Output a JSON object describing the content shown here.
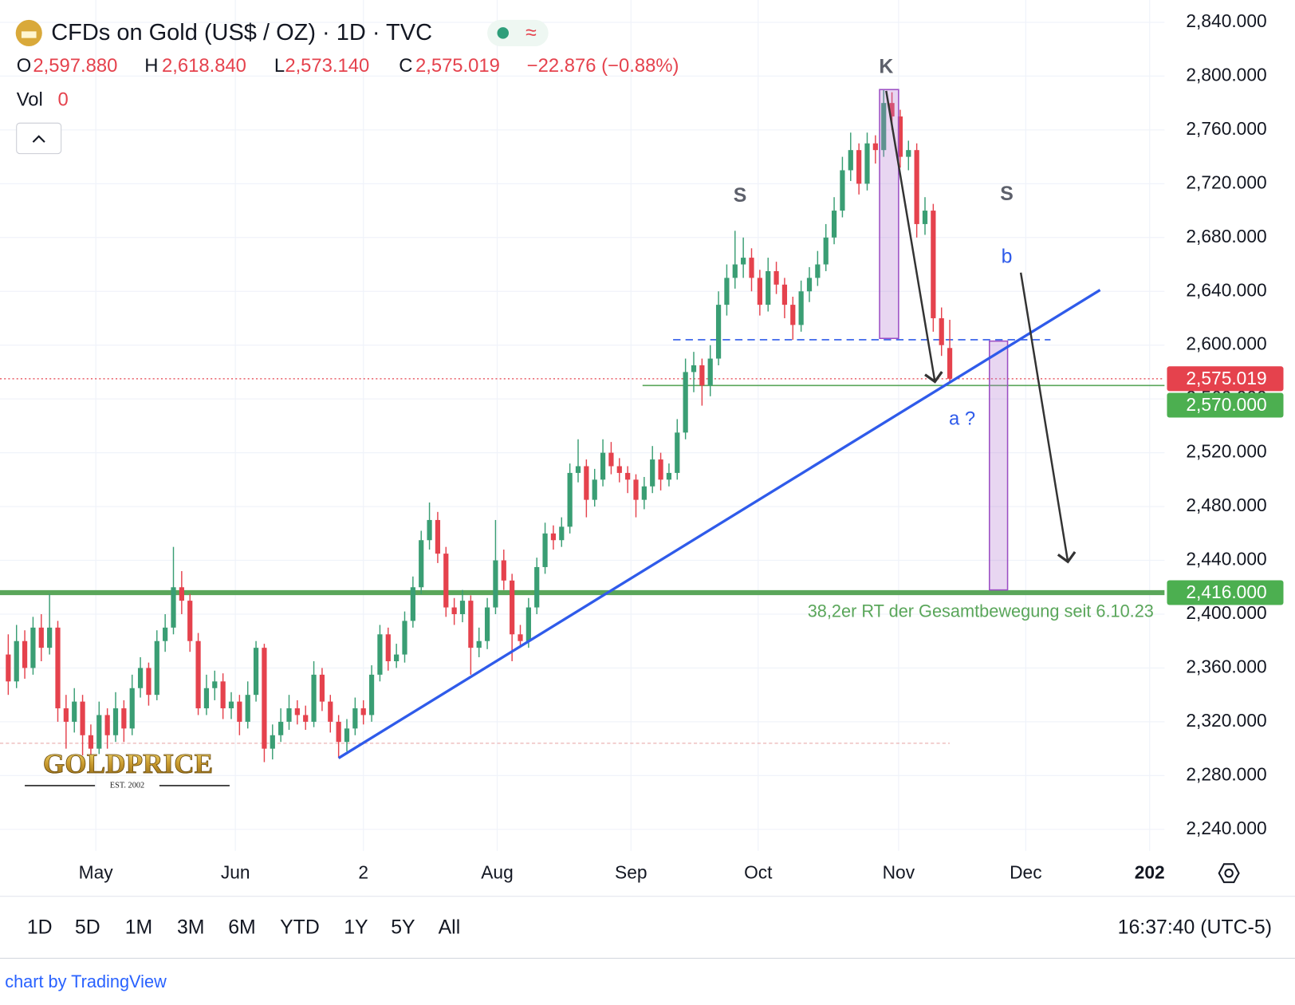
{
  "header": {
    "title": "CFDs on Gold (US$ / OZ) · 1D · TVC",
    "ohlc": [
      {
        "key": "O",
        "value": "2,597.880"
      },
      {
        "key": "H",
        "value": "2,618.840"
      },
      {
        "key": "L",
        "value": "2,573.140"
      },
      {
        "key": "C",
        "value": "2,575.019"
      }
    ],
    "change": "−22.876 (−0.88%)",
    "vol_label": "Vol",
    "vol_value": "0"
  },
  "chart_data": {
    "type": "candlestick",
    "up_color": "#3a9e74",
    "down_color": "#e5424d",
    "ylim": [
      2240,
      2840
    ],
    "yticks": [
      {
        "value": 2240,
        "label": "2,240.000"
      },
      {
        "value": 2280,
        "label": "2,280.000"
      },
      {
        "value": 2320,
        "label": "2,320.000"
      },
      {
        "value": 2360,
        "label": "2,360.000"
      },
      {
        "value": 2400,
        "label": "2,400.000"
      },
      {
        "value": 2440,
        "label": "2,440.000"
      },
      {
        "value": 2480,
        "label": "2,480.000"
      },
      {
        "value": 2520,
        "label": "2,520.000"
      },
      {
        "value": 2560,
        "label": "2,560.000"
      },
      {
        "value": 2600,
        "label": "2,600.000"
      },
      {
        "value": 2640,
        "label": "2,640.000"
      },
      {
        "value": 2680,
        "label": "2,680.000"
      },
      {
        "value": 2720,
        "label": "2,720.000"
      },
      {
        "value": 2760,
        "label": "2,760.000"
      },
      {
        "value": 2800,
        "label": "2,800.000"
      },
      {
        "value": 2840,
        "label": "2,840.000"
      }
    ],
    "xlim": [
      -1,
      140
    ],
    "xticks": [
      {
        "value": 10.6,
        "label": "May"
      },
      {
        "value": 27.5,
        "label": "Jun"
      },
      {
        "value": 43,
        "label": "2"
      },
      {
        "value": 59.2,
        "label": "Aug"
      },
      {
        "value": 75.4,
        "label": "Sep"
      },
      {
        "value": 90.8,
        "label": "Oct"
      },
      {
        "value": 107.8,
        "label": "Nov"
      },
      {
        "value": 123.2,
        "label": "Dec"
      },
      {
        "value": 138.2,
        "label": "202"
      }
    ],
    "grid": true,
    "candles": [
      [
        2370,
        2385,
        2340,
        2350
      ],
      [
        2350,
        2392,
        2345,
        2380
      ],
      [
        2380,
        2388,
        2352,
        2360
      ],
      [
        2360,
        2398,
        2355,
        2390
      ],
      [
        2390,
        2400,
        2365,
        2375
      ],
      [
        2375,
        2415,
        2370,
        2390
      ],
      [
        2390,
        2395,
        2320,
        2330
      ],
      [
        2330,
        2340,
        2300,
        2320
      ],
      [
        2320,
        2345,
        2312,
        2335
      ],
      [
        2335,
        2340,
        2295,
        2310
      ],
      [
        2310,
        2318,
        2290,
        2300
      ],
      [
        2300,
        2335,
        2296,
        2325
      ],
      [
        2325,
        2330,
        2300,
        2310
      ],
      [
        2310,
        2342,
        2305,
        2330
      ],
      [
        2330,
        2336,
        2305,
        2315
      ],
      [
        2315,
        2355,
        2310,
        2345
      ],
      [
        2345,
        2368,
        2338,
        2360
      ],
      [
        2360,
        2364,
        2332,
        2340
      ],
      [
        2340,
        2388,
        2336,
        2380
      ],
      [
        2380,
        2400,
        2372,
        2390
      ],
      [
        2390,
        2450,
        2385,
        2420
      ],
      [
        2420,
        2432,
        2400,
        2410
      ],
      [
        2410,
        2415,
        2372,
        2380
      ],
      [
        2380,
        2386,
        2325,
        2330
      ],
      [
        2330,
        2355,
        2325,
        2345
      ],
      [
        2345,
        2358,
        2336,
        2350
      ],
      [
        2350,
        2356,
        2322,
        2330
      ],
      [
        2330,
        2342,
        2322,
        2335
      ],
      [
        2335,
        2340,
        2310,
        2320
      ],
      [
        2320,
        2350,
        2315,
        2340
      ],
      [
        2340,
        2380,
        2335,
        2375
      ],
      [
        2375,
        2378,
        2290,
        2300
      ],
      [
        2300,
        2318,
        2292,
        2310
      ],
      [
        2310,
        2330,
        2305,
        2320
      ],
      [
        2320,
        2340,
        2314,
        2330
      ],
      [
        2330,
        2336,
        2318,
        2325
      ],
      [
        2325,
        2332,
        2314,
        2320
      ],
      [
        2320,
        2365,
        2316,
        2355
      ],
      [
        2355,
        2360,
        2328,
        2335
      ],
      [
        2335,
        2340,
        2312,
        2320
      ],
      [
        2320,
        2325,
        2293,
        2305
      ],
      [
        2305,
        2322,
        2298,
        2315
      ],
      [
        2315,
        2338,
        2310,
        2330
      ],
      [
        2330,
        2336,
        2318,
        2325
      ],
      [
        2325,
        2362,
        2320,
        2355
      ],
      [
        2355,
        2392,
        2350,
        2385
      ],
      [
        2385,
        2390,
        2358,
        2365
      ],
      [
        2365,
        2378,
        2360,
        2370
      ],
      [
        2370,
        2402,
        2364,
        2395
      ],
      [
        2395,
        2428,
        2390,
        2420
      ],
      [
        2420,
        2462,
        2415,
        2455
      ],
      [
        2455,
        2483,
        2448,
        2470
      ],
      [
        2470,
        2476,
        2438,
        2445
      ],
      [
        2445,
        2450,
        2398,
        2405
      ],
      [
        2405,
        2412,
        2392,
        2400
      ],
      [
        2400,
        2418,
        2394,
        2410
      ],
      [
        2410,
        2414,
        2355,
        2375
      ],
      [
        2375,
        2390,
        2368,
        2380
      ],
      [
        2380,
        2412,
        2374,
        2405
      ],
      [
        2405,
        2470,
        2400,
        2440
      ],
      [
        2440,
        2448,
        2418,
        2425
      ],
      [
        2425,
        2430,
        2365,
        2385
      ],
      [
        2385,
        2392,
        2375,
        2380
      ],
      [
        2380,
        2412,
        2375,
        2405
      ],
      [
        2405,
        2442,
        2400,
        2435
      ],
      [
        2435,
        2468,
        2430,
        2460
      ],
      [
        2460,
        2466,
        2448,
        2455
      ],
      [
        2455,
        2472,
        2450,
        2465
      ],
      [
        2465,
        2512,
        2460,
        2505
      ],
      [
        2505,
        2530,
        2498,
        2510
      ],
      [
        2510,
        2515,
        2472,
        2485
      ],
      [
        2485,
        2508,
        2480,
        2500
      ],
      [
        2500,
        2530,
        2495,
        2520
      ],
      [
        2520,
        2528,
        2504,
        2510
      ],
      [
        2510,
        2516,
        2498,
        2505
      ],
      [
        2505,
        2510,
        2490,
        2500
      ],
      [
        2500,
        2504,
        2472,
        2485
      ],
      [
        2485,
        2502,
        2478,
        2495
      ],
      [
        2495,
        2525,
        2490,
        2515
      ],
      [
        2515,
        2520,
        2492,
        2500
      ],
      [
        2500,
        2512,
        2495,
        2505
      ],
      [
        2505,
        2545,
        2500,
        2535
      ],
      [
        2535,
        2590,
        2530,
        2580
      ],
      [
        2580,
        2595,
        2565,
        2585
      ],
      [
        2585,
        2590,
        2555,
        2570
      ],
      [
        2570,
        2600,
        2562,
        2590
      ],
      [
        2590,
        2640,
        2585,
        2630
      ],
      [
        2630,
        2660,
        2622,
        2650
      ],
      [
        2650,
        2685,
        2642,
        2660
      ],
      [
        2660,
        2680,
        2650,
        2665
      ],
      [
        2665,
        2672,
        2640,
        2650
      ],
      [
        2650,
        2656,
        2622,
        2630
      ],
      [
        2630,
        2665,
        2625,
        2655
      ],
      [
        2655,
        2662,
        2638,
        2645
      ],
      [
        2645,
        2650,
        2620,
        2630
      ],
      [
        2630,
        2636,
        2604,
        2615
      ],
      [
        2615,
        2648,
        2610,
        2640
      ],
      [
        2640,
        2658,
        2632,
        2650
      ],
      [
        2650,
        2670,
        2644,
        2660
      ],
      [
        2660,
        2690,
        2655,
        2680
      ],
      [
        2680,
        2710,
        2675,
        2700
      ],
      [
        2700,
        2740,
        2695,
        2730
      ],
      [
        2730,
        2758,
        2722,
        2745
      ],
      [
        2745,
        2750,
        2712,
        2720
      ],
      [
        2720,
        2758,
        2715,
        2750
      ],
      [
        2750,
        2756,
        2735,
        2745
      ],
      [
        2745,
        2790,
        2740,
        2780
      ],
      [
        2780,
        2788,
        2760,
        2770
      ],
      [
        2770,
        2775,
        2732,
        2740
      ],
      [
        2740,
        2752,
        2730,
        2745
      ],
      [
        2745,
        2750,
        2680,
        2690
      ],
      [
        2690,
        2710,
        2682,
        2700
      ],
      [
        2700,
        2705,
        2610,
        2620
      ],
      [
        2620,
        2628,
        2592,
        2600
      ],
      [
        2597.88,
        2618.84,
        2573.14,
        2575.019
      ]
    ],
    "price_tags": [
      {
        "value": 2575.019,
        "label": "2,575.019",
        "color": "#e5424d"
      },
      {
        "value": 2570,
        "label": "2,570.000",
        "color": "#4caf50"
      },
      {
        "value": 2416,
        "label": "2,416.000",
        "color": "#4caf50"
      }
    ],
    "levels": {
      "last_price": 2575.019,
      "support": 2570,
      "retracement": 2416,
      "neckline": 2604,
      "low_marker": 2304
    },
    "trendline": [
      2293,
      2641
    ],
    "boxes": [
      [
        2790,
        2605
      ],
      [
        2603,
        2418
      ]
    ],
    "annotations": [
      "K",
      "S",
      "S",
      "b",
      "a ?"
    ],
    "level_note": "38,2er RT der Gesamtbewegung seit 6.10.23"
  },
  "footer": {
    "ranges": [
      "1D",
      "5D",
      "1M",
      "3M",
      "6M",
      "YTD",
      "1Y",
      "5Y",
      "All"
    ],
    "time": "16:37:40 (UTC-5)",
    "credit": "chart by TradingView"
  },
  "logo": {
    "name": "GOLDPRICE",
    "est": "EST. 2002"
  }
}
